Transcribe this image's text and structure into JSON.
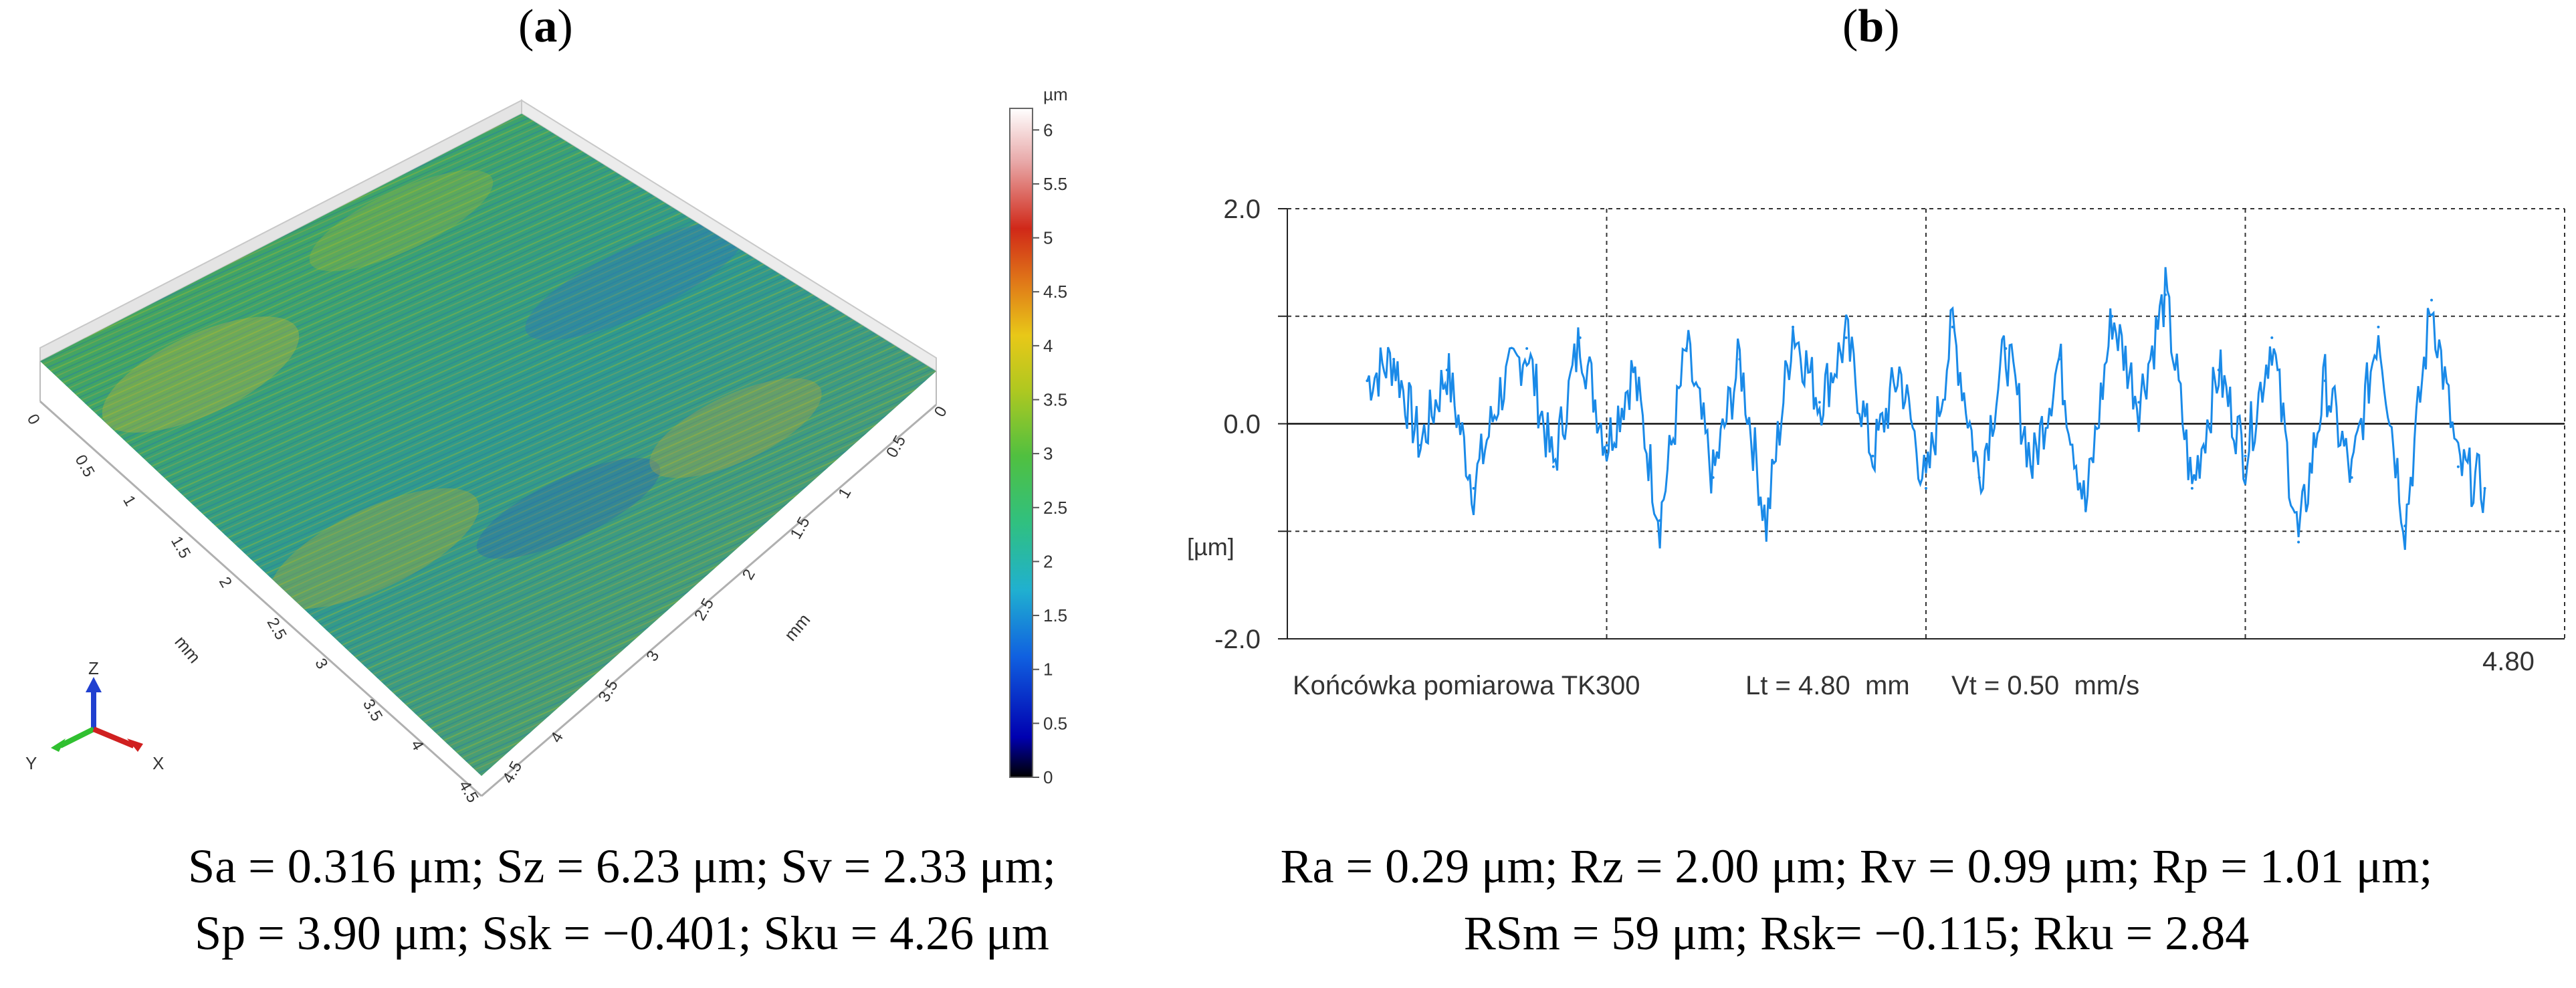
{
  "panel_a": {
    "label": "a",
    "colorbar": {
      "unit": "µm",
      "ticks": [
        "0",
        "0.5",
        "1",
        "1.5",
        "2",
        "2.5",
        "3",
        "3.5",
        "4",
        "4.5",
        "5",
        "5.5",
        "6"
      ]
    },
    "surface": {
      "axis_unit": "mm",
      "left_axis_ticks": [
        "0",
        "0.5",
        "1",
        "1.5",
        "2",
        "2.5",
        "3",
        "3.5",
        "4",
        "4.5"
      ],
      "right_axis_ticks": [
        "0",
        "0.5",
        "1",
        "1.5",
        "2",
        "2.5",
        "3",
        "3.5",
        "4",
        "4.5"
      ]
    },
    "axes_triad": {
      "z": "Z",
      "y": "Y",
      "x": "X"
    },
    "caption_line1": "Sa = 0.316 μm; Sz = 6.23 μm; Sv = 2.33 μm;",
    "caption_line2": "Sp = 3.90 μm; Ssk = −0.401; Sku = 4.26 μm"
  },
  "panel_b": {
    "label": "b",
    "footer": {
      "probe": "Końcówka pomiarowa TK300",
      "lt": "Lt = 4.80  mm",
      "vt": "Vt = 0.50  mm/s",
      "x_end": "4.80"
    },
    "caption_line1": "Ra = 0.29 μm; Rz = 2.00 μm; Rv = 0.99 μm; Rp = 1.01 μm;",
    "caption_line2": "RSm = 59 μm; Rsk= −0.115; Rku = 2.84"
  },
  "chart_data": [
    {
      "type": "heatmap",
      "title": "",
      "description_type": "3D surface topography",
      "colorbar_range": [
        0,
        6.2
      ],
      "colorbar_unit": "µm",
      "x_range_mm": [
        0,
        4.5
      ],
      "y_range_mm": [
        0,
        4.5
      ],
      "colors": [
        "#000000",
        "#0000cc",
        "#1e8fd0",
        "#2fb8a8",
        "#46c24a",
        "#b8c820",
        "#e8c818",
        "#e07020",
        "#d02018",
        "#e8b0b0",
        "#ffffff"
      ]
    },
    {
      "type": "line",
      "title": "",
      "ylabel": "[µm]",
      "xlabel": "",
      "ylim": [
        -2.0,
        2.0
      ],
      "yticks": [
        "2.0",
        "0.0",
        "-2.0"
      ],
      "xlim": [
        0,
        4.8
      ],
      "series": [
        {
          "name": "roughness profile",
          "color": "#1a8ae8",
          "x": [
            0.3,
            0.4,
            0.5,
            0.6,
            0.7,
            0.8,
            0.9,
            1.0,
            1.1,
            1.2,
            1.3,
            1.4,
            1.5,
            1.6,
            1.7,
            1.8,
            1.9,
            2.0,
            2.1,
            2.2,
            2.3,
            2.4,
            2.5,
            2.6,
            2.7,
            2.8,
            2.9,
            3.0,
            3.1,
            3.2,
            3.3,
            3.4,
            3.5,
            3.6,
            3.7,
            3.8,
            3.9,
            4.0,
            4.1,
            4.2,
            4.3,
            4.4,
            4.5
          ],
          "values": [
            0.4,
            0.6,
            -0.2,
            0.5,
            -0.6,
            0.3,
            0.7,
            -0.4,
            0.8,
            -0.2,
            0.5,
            -0.9,
            0.7,
            -0.5,
            0.6,
            -0.95,
            0.9,
            0.2,
            0.8,
            -0.3,
            0.5,
            -0.6,
            0.9,
            -0.5,
            0.7,
            -0.4,
            0.6,
            -0.8,
            1.0,
            0.2,
            1.2,
            -0.6,
            0.5,
            -0.3,
            0.8,
            -1.1,
            0.4,
            -0.5,
            0.9,
            -0.95,
            1.15,
            -0.4,
            -0.6
          ]
        }
      ]
    }
  ]
}
